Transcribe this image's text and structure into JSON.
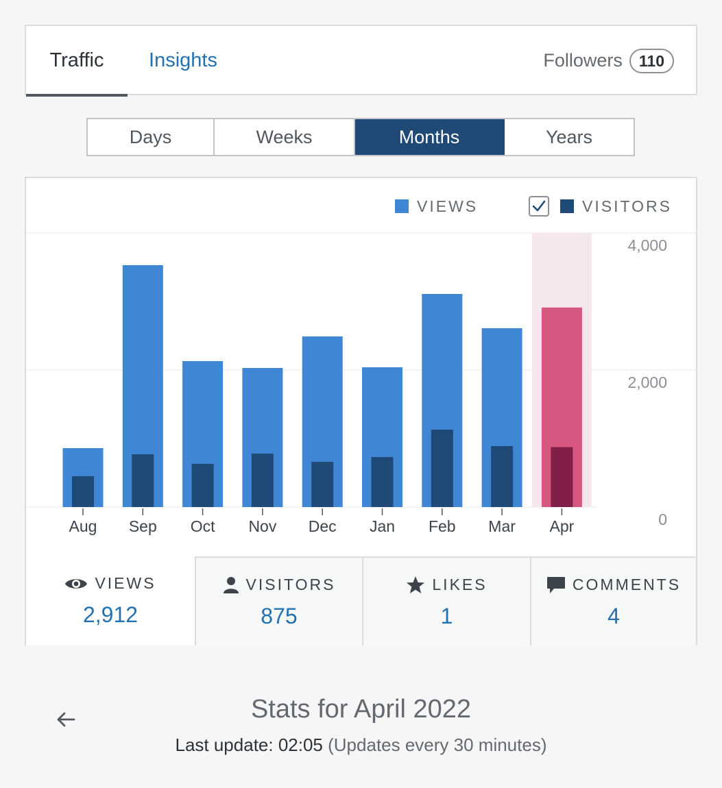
{
  "header": {
    "tabs": [
      {
        "label": "Traffic",
        "active": true
      },
      {
        "label": "Insights",
        "active": false
      }
    ],
    "followers_label": "Followers",
    "followers_count": "110"
  },
  "periods": [
    {
      "label": "Days",
      "active": false
    },
    {
      "label": "Weeks",
      "active": false
    },
    {
      "label": "Months",
      "active": true
    },
    {
      "label": "Years",
      "active": false
    }
  ],
  "legend": {
    "views_label": "VIEWS",
    "visitors_label": "VISITORS",
    "visitors_checked": true
  },
  "colors": {
    "views": "#3f86d4",
    "visitors": "#1f4a77",
    "highlight_views": "#d6577f",
    "highlight_visitors": "#811f48",
    "highlight_band": "#f6e6ee",
    "active_tab": "#1f4a77",
    "link": "#2271b1"
  },
  "chart_data": {
    "type": "bar",
    "categories": [
      "Aug",
      "Sep",
      "Oct",
      "Nov",
      "Dec",
      "Jan",
      "Feb",
      "Mar",
      "Apr"
    ],
    "series": [
      {
        "name": "VIEWS",
        "values": [
          860,
          3530,
          2130,
          2030,
          2490,
          2040,
          3110,
          2610,
          2912
        ]
      },
      {
        "name": "VISITORS",
        "values": [
          450,
          770,
          630,
          780,
          660,
          730,
          1130,
          890,
          875
        ]
      }
    ],
    "highlighted_category": "Apr",
    "y_ticks": [
      "4,000",
      "2,000",
      "0"
    ],
    "ylim": [
      0,
      4000
    ],
    "grid": true,
    "legend_position": "top-right"
  },
  "stats": [
    {
      "icon": "eye-icon",
      "label": "VIEWS",
      "value": "2,912"
    },
    {
      "icon": "person-icon",
      "label": "VISITORS",
      "value": "875"
    },
    {
      "icon": "star-icon",
      "label": "LIKES",
      "value": "1"
    },
    {
      "icon": "comment-icon",
      "label": "COMMENTS",
      "value": "4"
    }
  ],
  "footer": {
    "title": "Stats for April 2022",
    "last_update_label": "Last update: 02:05",
    "update_note": "(Updates every 30 minutes)"
  }
}
